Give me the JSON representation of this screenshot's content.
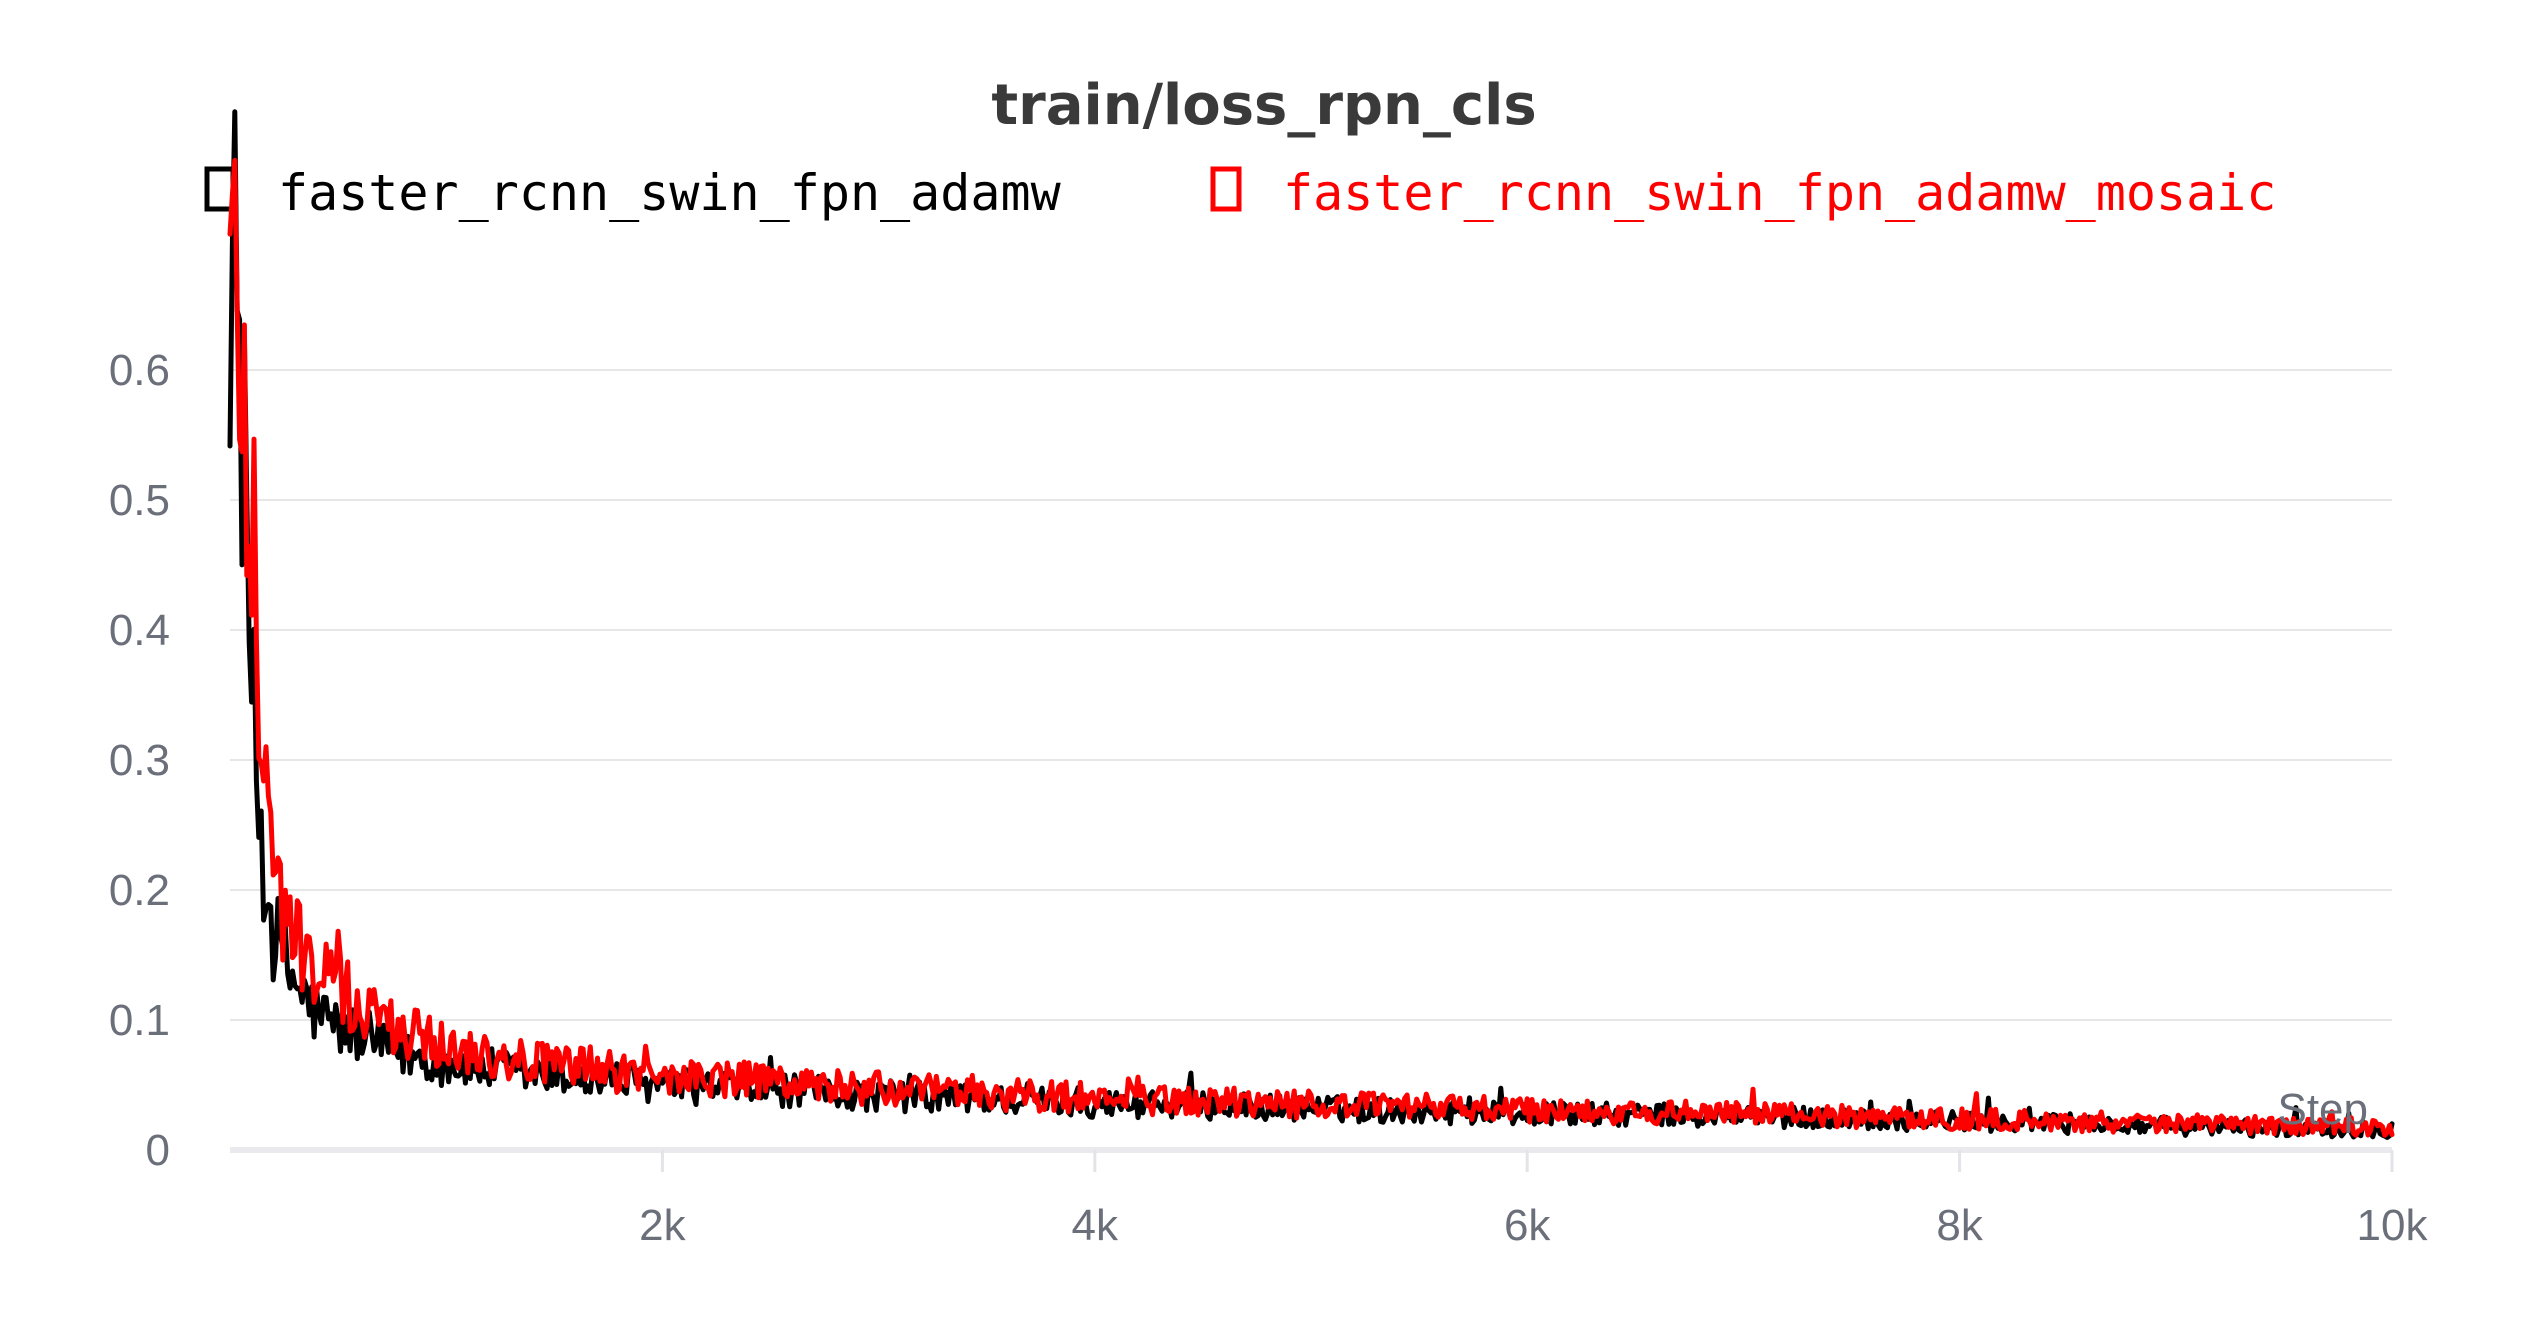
{
  "chart_data": {
    "type": "line",
    "title": "train/loss_rpn_cls",
    "xlabel": "Step",
    "ylabel": "",
    "xlim": [
      0,
      10000
    ],
    "ylim": [
      0,
      0.7
    ],
    "x_ticks": [
      {
        "value": 2000,
        "label": "2k"
      },
      {
        "value": 4000,
        "label": "4k"
      },
      {
        "value": 6000,
        "label": "6k"
      },
      {
        "value": 8000,
        "label": "8k"
      },
      {
        "value": 10000,
        "label": "10k"
      }
    ],
    "y_ticks": [
      {
        "value": 0,
        "label": "0"
      },
      {
        "value": 0.1,
        "label": "0.1"
      },
      {
        "value": 0.2,
        "label": "0.2"
      },
      {
        "value": 0.3,
        "label": "0.3"
      },
      {
        "value": 0.4,
        "label": "0.4"
      },
      {
        "value": 0.5,
        "label": "0.5"
      },
      {
        "value": 0.6,
        "label": "0.6"
      }
    ],
    "grid": true,
    "legend_position": "top",
    "series": [
      {
        "name": "faster_rcnn_swin_fpn_adamw",
        "color": "#000000",
        "points": [
          [
            0,
            0.69
          ],
          [
            20,
            0.68
          ],
          [
            40,
            0.63
          ],
          [
            60,
            0.55
          ],
          [
            80,
            0.45
          ],
          [
            100,
            0.36
          ],
          [
            120,
            0.3
          ],
          [
            140,
            0.25
          ],
          [
            160,
            0.21
          ],
          [
            180,
            0.19
          ],
          [
            200,
            0.17
          ],
          [
            230,
            0.155
          ],
          [
            260,
            0.14
          ],
          [
            300,
            0.13
          ],
          [
            350,
            0.115
          ],
          [
            400,
            0.105
          ],
          [
            450,
            0.1
          ],
          [
            500,
            0.095
          ],
          [
            600,
            0.088
          ],
          [
            700,
            0.08
          ],
          [
            800,
            0.075
          ],
          [
            900,
            0.07
          ],
          [
            1000,
            0.066
          ],
          [
            1200,
            0.062
          ],
          [
            1400,
            0.058
          ],
          [
            1600,
            0.055
          ],
          [
            1800,
            0.052
          ],
          [
            2000,
            0.05
          ],
          [
            2500,
            0.046
          ],
          [
            3000,
            0.042
          ],
          [
            3500,
            0.039
          ],
          [
            4000,
            0.036
          ],
          [
            4500,
            0.034
          ],
          [
            5000,
            0.032
          ],
          [
            5500,
            0.03
          ],
          [
            6000,
            0.028
          ],
          [
            6500,
            0.027
          ],
          [
            7000,
            0.026
          ],
          [
            7500,
            0.024
          ],
          [
            8000,
            0.022
          ],
          [
            8500,
            0.02
          ],
          [
            9000,
            0.018
          ],
          [
            9500,
            0.017
          ],
          [
            10000,
            0.016
          ]
        ]
      },
      {
        "name": "faster_rcnn_swin_fpn_adamw_mosaic",
        "color": "#ff0000",
        "points": [
          [
            0,
            0.69
          ],
          [
            20,
            0.68
          ],
          [
            40,
            0.65
          ],
          [
            60,
            0.6
          ],
          [
            80,
            0.53
          ],
          [
            100,
            0.46
          ],
          [
            120,
            0.4
          ],
          [
            140,
            0.34
          ],
          [
            160,
            0.29
          ],
          [
            180,
            0.25
          ],
          [
            200,
            0.22
          ],
          [
            230,
            0.195
          ],
          [
            260,
            0.18
          ],
          [
            300,
            0.165
          ],
          [
            350,
            0.15
          ],
          [
            400,
            0.14
          ],
          [
            450,
            0.13
          ],
          [
            500,
            0.122
          ],
          [
            600,
            0.11
          ],
          [
            700,
            0.1
          ],
          [
            800,
            0.092
          ],
          [
            900,
            0.085
          ],
          [
            1000,
            0.08
          ],
          [
            1200,
            0.074
          ],
          [
            1400,
            0.068
          ],
          [
            1600,
            0.064
          ],
          [
            1800,
            0.06
          ],
          [
            2000,
            0.057
          ],
          [
            2500,
            0.052
          ],
          [
            3000,
            0.047
          ],
          [
            3500,
            0.043
          ],
          [
            4000,
            0.04
          ],
          [
            4500,
            0.037
          ],
          [
            5000,
            0.035
          ],
          [
            5500,
            0.033
          ],
          [
            6000,
            0.031
          ],
          [
            6500,
            0.029
          ],
          [
            7000,
            0.028
          ],
          [
            7500,
            0.026
          ],
          [
            8000,
            0.024
          ],
          [
            8500,
            0.022
          ],
          [
            9000,
            0.02
          ],
          [
            9500,
            0.019
          ],
          [
            10000,
            0.018
          ]
        ]
      }
    ]
  }
}
